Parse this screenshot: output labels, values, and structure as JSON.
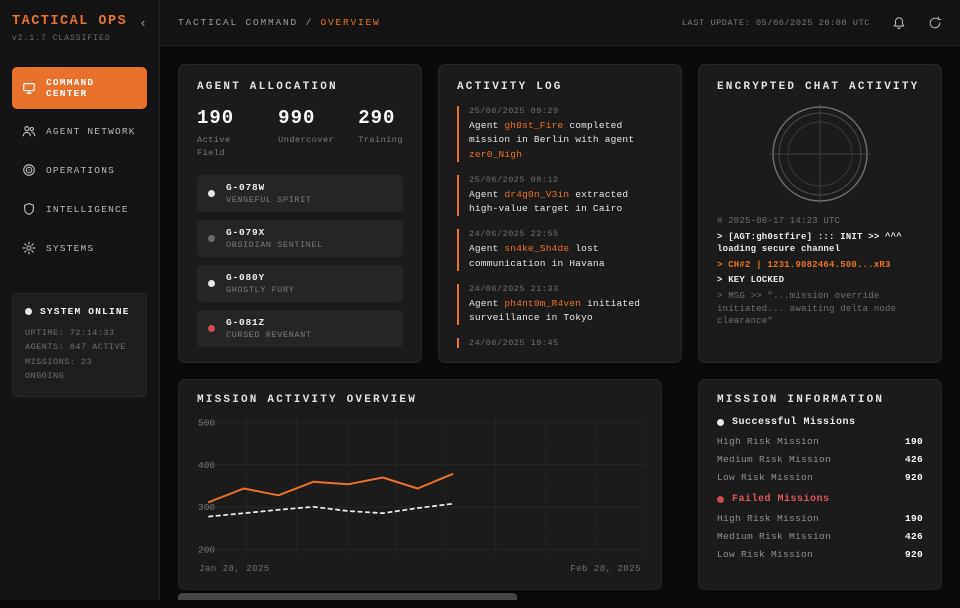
{
  "colors": {
    "accent": "#e8722b",
    "danger": "#db5858",
    "dim_dot": "#6a6a6a",
    "active_dot": "#e8e8e8"
  },
  "app": {
    "title": "TACTICAL OPS",
    "version": "v2.1.7 CLASSIFIED",
    "collapse_glyph": "‹"
  },
  "topbar": {
    "breadcrumb_root": "TACTICAL COMMAND",
    "separator": " / ",
    "breadcrumb_current": "OVERVIEW",
    "last_update": "LAST UPDATE: 05/06/2025 20:00 UTC"
  },
  "sidebar": {
    "items": [
      {
        "label": "COMMAND CENTER",
        "icon": "monitor-icon",
        "active": true
      },
      {
        "label": "AGENT NETWORK",
        "icon": "users-icon",
        "active": false
      },
      {
        "label": "OPERATIONS",
        "icon": "target-icon",
        "active": false
      },
      {
        "label": "INTELLIGENCE",
        "icon": "shield-icon",
        "active": false
      },
      {
        "label": "SYSTEMS",
        "icon": "gear-icon",
        "active": false
      }
    ],
    "status": {
      "title": "SYSTEM ONLINE",
      "lines": [
        "UPTIME: 72:14:33",
        "AGENTS: 847 ACTIVE",
        "MISSIONS: 23 ONGOING"
      ]
    }
  },
  "agent_allocation": {
    "title": "AGENT ALLOCATION",
    "stats": [
      {
        "value": "190",
        "label": "Active Field"
      },
      {
        "value": "990",
        "label": "Undercover"
      },
      {
        "value": "290",
        "label": "Training"
      }
    ],
    "agents": [
      {
        "id": "G-078W",
        "codename": "VENGEFUL SPIRIT",
        "dot_color": "#e8e8e8"
      },
      {
        "id": "G-079X",
        "codename": "OBSIDIAN SENTINEL",
        "dot_color": "#6a6a6a"
      },
      {
        "id": "G-080Y",
        "codename": "GHOSTLY FURY",
        "dot_color": "#e8e8e8"
      },
      {
        "id": "G-081Z",
        "codename": "CURSED REVENANT",
        "dot_color": "#d05050"
      }
    ]
  },
  "activity_log": {
    "title": "ACTIVITY LOG",
    "entries": [
      {
        "timestamp": "25/06/2025 09:29",
        "segments": [
          {
            "text": "Agent "
          },
          {
            "text": "gh0st_Fire",
            "highlight": true
          },
          {
            "text": " completed mission in Berlin with agent "
          },
          {
            "text": "zer0_Nigh",
            "highlight": true
          }
        ]
      },
      {
        "timestamp": "25/06/2025 08:12",
        "segments": [
          {
            "text": "Agent "
          },
          {
            "text": "dr4g0n_V3in",
            "highlight": true
          },
          {
            "text": " extracted high-value target in Cairo"
          }
        ]
      },
      {
        "timestamp": "24/06/2025 22:55",
        "segments": [
          {
            "text": "Agent "
          },
          {
            "text": "sn4ke_Sh4de",
            "highlight": true
          },
          {
            "text": " lost communication in Havana"
          }
        ]
      },
      {
        "timestamp": "24/06/2025 21:33",
        "segments": [
          {
            "text": "Agent "
          },
          {
            "text": "ph4nt0m_R4ven",
            "highlight": true
          },
          {
            "text": " initiated surveillance in Tokyo"
          }
        ]
      },
      {
        "timestamp": "24/06/2025 19:45",
        "segments": []
      }
    ]
  },
  "encrypted_chat": {
    "title": "ENCRYPTED CHAT ACTIVITY",
    "lines": [
      {
        "text": "# 2025-06-17 14:23 UTC",
        "style": "dim"
      },
      {
        "text": "> [AGT:gh0stfire] ::: INIT >> ^^^ loading secure channel",
        "style": "bright"
      },
      {
        "text": "> CH#2 | 1231.9082464.500...xR3",
        "style": "accent"
      },
      {
        "text": "> KEY LOCKED",
        "style": "bright"
      },
      {
        "text": "> MSG >> \"...mission override initiated... awaiting delta node clearance\"",
        "style": "dim"
      }
    ]
  },
  "chart_data": {
    "type": "line",
    "title": "MISSION ACTIVITY OVERVIEW",
    "x_start_label": "Jan 28, 2025",
    "x_end_label": "Feb 28, 2025",
    "yticks": [
      200,
      300,
      400,
      500
    ],
    "ylim": [
      185,
      515
    ],
    "grid": true,
    "legend": "none",
    "series_span_fraction": 0.57,
    "series": [
      {
        "name": "missions-solid",
        "color": "#e8722b",
        "dash": false,
        "values": [
          312,
          344,
          328,
          360,
          354,
          370,
          344,
          378
        ]
      },
      {
        "name": "missions-dashed",
        "color": "#e6e6e6",
        "dash": true,
        "values": [
          278,
          286,
          294,
          301,
          291,
          286,
          298,
          308
        ]
      }
    ]
  },
  "mission_info": {
    "title": "MISSION INFORMATION",
    "sections": [
      {
        "label": "Successful Missions",
        "color": "#ececec",
        "dot_color": "#e8e8e8",
        "rows": [
          {
            "label": "High Risk Mission",
            "value": "190"
          },
          {
            "label": "Medium Risk Mission",
            "value": "426"
          },
          {
            "label": "Low Risk Mission",
            "value": "920"
          }
        ]
      },
      {
        "label": "Failed Missions",
        "color": "#db5858",
        "dot_color": "#c94b4b",
        "rows": [
          {
            "label": "High Risk Mission",
            "value": "190"
          },
          {
            "label": "Medium Risk Mission",
            "value": "426"
          },
          {
            "label": "Low Risk Mission",
            "value": "920"
          }
        ]
      }
    ]
  }
}
